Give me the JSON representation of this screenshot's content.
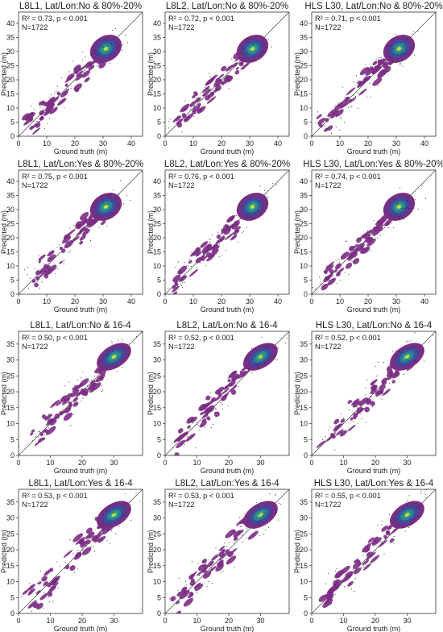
{
  "colors": {
    "contour_outer": "#7b2d84",
    "contour_mid": "#3d4e9a",
    "contour_core": "#2a9b8a",
    "contour_peak": "#c8dd3a",
    "points": "#222222",
    "frame": "#333333"
  },
  "chart_data": [
    {
      "type": "scatter",
      "title": "L8L1, Lat/Lon:No & 80%-20%",
      "annotation": [
        "R² = 0.73, p < 0.001",
        "N=1722"
      ],
      "xlabel": "Ground truth (m)",
      "ylabel": "Predicted (m)",
      "xlim": [
        0,
        44
      ],
      "ylim": [
        0,
        44
      ],
      "xticks": [
        0,
        10,
        20,
        30,
        40
      ],
      "yticks": [
        0,
        5,
        10,
        15,
        20,
        25,
        30,
        35,
        40
      ],
      "center": [
        31,
        31
      ],
      "spread": [
        6,
        4.5
      ],
      "diagonal": true
    },
    {
      "type": "scatter",
      "title": "L8L2, Lat/Lon:No & 80%-20%",
      "annotation": [
        "R² = 0.72, p < 0.001",
        "N=1722"
      ],
      "xlabel": "Ground truth (m)",
      "ylabel": "Predicted (m)",
      "xlim": [
        0,
        44
      ],
      "ylim": [
        0,
        44
      ],
      "xticks": [
        0,
        10,
        20,
        30,
        40
      ],
      "yticks": [
        0,
        5,
        10,
        15,
        20,
        25,
        30,
        35,
        40
      ],
      "center": [
        31,
        31
      ],
      "spread": [
        6,
        4.5
      ],
      "diagonal": true
    },
    {
      "type": "scatter",
      "title": "HLS L30, Lat/Lon:No & 80%-20%",
      "annotation": [
        "R² = 0.71, p < 0.001",
        "N=1722"
      ],
      "xlabel": "Ground truth (m)",
      "ylabel": "Predicted (m)",
      "xlim": [
        0,
        44
      ],
      "ylim": [
        0,
        44
      ],
      "xticks": [
        0,
        10,
        20,
        30,
        40
      ],
      "yticks": [
        0,
        5,
        10,
        15,
        20,
        25,
        30,
        35,
        40
      ],
      "center": [
        31,
        31
      ],
      "spread": [
        6,
        4.5
      ],
      "diagonal": true
    },
    {
      "type": "scatter",
      "title": "L8L1, Lat/Lon:Yes & 80%-20%",
      "annotation": [
        "R² = 0.75, p < 0.001",
        "N=1722"
      ],
      "xlabel": "Ground truth (m)",
      "ylabel": "Predicted (m)",
      "xlim": [
        0,
        44
      ],
      "ylim": [
        0,
        44
      ],
      "xticks": [
        0,
        10,
        20,
        30,
        40
      ],
      "yticks": [
        0,
        5,
        10,
        15,
        20,
        25,
        30,
        35,
        40
      ],
      "center": [
        31,
        31
      ],
      "spread": [
        6,
        4.5
      ],
      "diagonal": true
    },
    {
      "type": "scatter",
      "title": "L8L2, Lat/Lon:Yes & 80%-20%",
      "annotation": [
        "R² = 0.76, p < 0.001",
        "N=1722"
      ],
      "xlabel": "Ground truth (m)",
      "ylabel": "Predicted (m)",
      "xlim": [
        0,
        44
      ],
      "ylim": [
        0,
        44
      ],
      "xticks": [
        0,
        10,
        20,
        30,
        40
      ],
      "yticks": [
        0,
        5,
        10,
        15,
        20,
        25,
        30,
        35,
        40
      ],
      "center": [
        31,
        31
      ],
      "spread": [
        6,
        4.5
      ],
      "diagonal": true
    },
    {
      "type": "scatter",
      "title": "HLS L30, Lat/Lon:Yes & 80%-20%",
      "annotation": [
        "R² = 0.74, p < 0.001",
        "N=1722"
      ],
      "xlabel": "Ground truth (m)",
      "ylabel": "Predicted (m)",
      "xlim": [
        0,
        44
      ],
      "ylim": [
        0,
        44
      ],
      "xticks": [
        0,
        10,
        20,
        30,
        40
      ],
      "yticks": [
        0,
        5,
        10,
        15,
        20,
        25,
        30,
        35,
        40
      ],
      "center": [
        31,
        31
      ],
      "spread": [
        6,
        4.5
      ],
      "diagonal": true
    },
    {
      "type": "scatter",
      "title": "L8L1, Lat/Lon:No & 16-4",
      "annotation": [
        "R² = 0.50, p < 0.001",
        "N=1722"
      ],
      "xlabel": "Ground truth (m)",
      "ylabel": "Predicted (m)",
      "xlim": [
        0,
        39
      ],
      "ylim": [
        0,
        39
      ],
      "xticks": [
        0,
        10,
        20,
        30
      ],
      "yticks": [
        0,
        5,
        10,
        15,
        20,
        25,
        30,
        35
      ],
      "center": [
        30,
        31
      ],
      "spread": [
        6,
        3.5
      ],
      "diagonal": true
    },
    {
      "type": "scatter",
      "title": "L8L2, Lat/Lon:No & 16-4",
      "annotation": [
        "R² = 0.52, p < 0.001",
        "N=1722"
      ],
      "xlabel": "Ground truth (m)",
      "ylabel": "Predicted (m)",
      "xlim": [
        0,
        39
      ],
      "ylim": [
        0,
        39
      ],
      "xticks": [
        0,
        10,
        20,
        30
      ],
      "yticks": [
        0,
        5,
        10,
        15,
        20,
        25,
        30,
        35
      ],
      "center": [
        30,
        31
      ],
      "spread": [
        6,
        3.5
      ],
      "diagonal": true
    },
    {
      "type": "scatter",
      "title": "HLS L30, Lat/Lon:No & 16-4",
      "annotation": [
        "R² = 0.52, p < 0.001",
        "N=1722"
      ],
      "xlabel": "Ground truth (m)",
      "ylabel": "Predicted (m)",
      "xlim": [
        0,
        39
      ],
      "ylim": [
        0,
        39
      ],
      "xticks": [
        0,
        10,
        20,
        30
      ],
      "yticks": [
        0,
        5,
        10,
        15,
        20,
        25,
        30,
        35
      ],
      "center": [
        30,
        31
      ],
      "spread": [
        6,
        3.5
      ],
      "diagonal": true
    },
    {
      "type": "scatter",
      "title": "L8L1, Lat/Lon:Yes & 16-4",
      "annotation": [
        "R² = 0.53, p < 0.001",
        "N=1722"
      ],
      "xlabel": "Ground truth (m)",
      "ylabel": "Predicted (m)",
      "xlim": [
        0,
        39
      ],
      "ylim": [
        0,
        39
      ],
      "xticks": [
        0,
        10,
        20,
        30
      ],
      "yticks": [
        0,
        5,
        10,
        15,
        20,
        25,
        30,
        35
      ],
      "center": [
        30,
        31
      ],
      "spread": [
        6,
        3.5
      ],
      "diagonal": true
    },
    {
      "type": "scatter",
      "title": "L8L2, Lat/Lon:Yes & 16-4",
      "annotation": [
        "R² = 0.53, p < 0.001",
        "N=1722"
      ],
      "xlabel": "Ground truth (m)",
      "ylabel": "Predicted (m)",
      "xlim": [
        0,
        39
      ],
      "ylim": [
        0,
        39
      ],
      "xticks": [
        0,
        10,
        20,
        30
      ],
      "yticks": [
        0,
        5,
        10,
        15,
        20,
        25,
        30,
        35
      ],
      "center": [
        30,
        31
      ],
      "spread": [
        6,
        3.5
      ],
      "diagonal": true
    },
    {
      "type": "scatter",
      "title": "HLS L30, Lat/Lon:Yes & 16-4",
      "annotation": [
        "R² = 0.55, p < 0.001",
        "N=1722"
      ],
      "xlabel": "Ground truth (m)",
      "ylabel": "Predicted (m)",
      "xlim": [
        0,
        39
      ],
      "ylim": [
        0,
        39
      ],
      "xticks": [
        0,
        10,
        20,
        30
      ],
      "yticks": [
        0,
        5,
        10,
        15,
        20,
        25,
        30,
        35
      ],
      "center": [
        30,
        31
      ],
      "spread": [
        6,
        3.5
      ],
      "diagonal": true
    }
  ]
}
